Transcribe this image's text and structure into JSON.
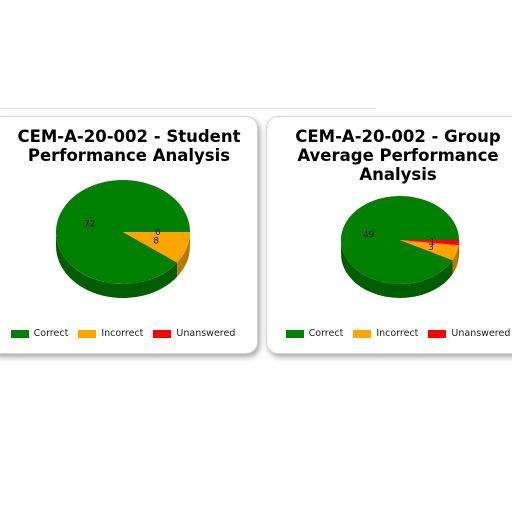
{
  "chart_data": [
    {
      "type": "pie",
      "title_lines": [
        "CEM-A-20-002 - Student",
        "Performance Analysis"
      ],
      "slices": [
        {
          "label": "Correct",
          "value": 72
        },
        {
          "label": "Incorrect",
          "value": 8
        },
        {
          "label": "Unanswered",
          "value": 0
        }
      ]
    },
    {
      "type": "pie",
      "title_lines": [
        "CEM-A-20-002 - Group",
        "Average Performance",
        "Analysis"
      ],
      "slices": [
        {
          "label": "Correct",
          "value": 49
        },
        {
          "label": "Incorrect",
          "value": 3
        },
        {
          "label": "Unanswered",
          "value": 1
        }
      ]
    }
  ],
  "colors": {
    "Correct": "#008000",
    "Incorrect": "#FFA500",
    "Unanswered": "#FF0000"
  },
  "legend": [
    "Correct",
    "Incorrect",
    "Unanswered"
  ]
}
